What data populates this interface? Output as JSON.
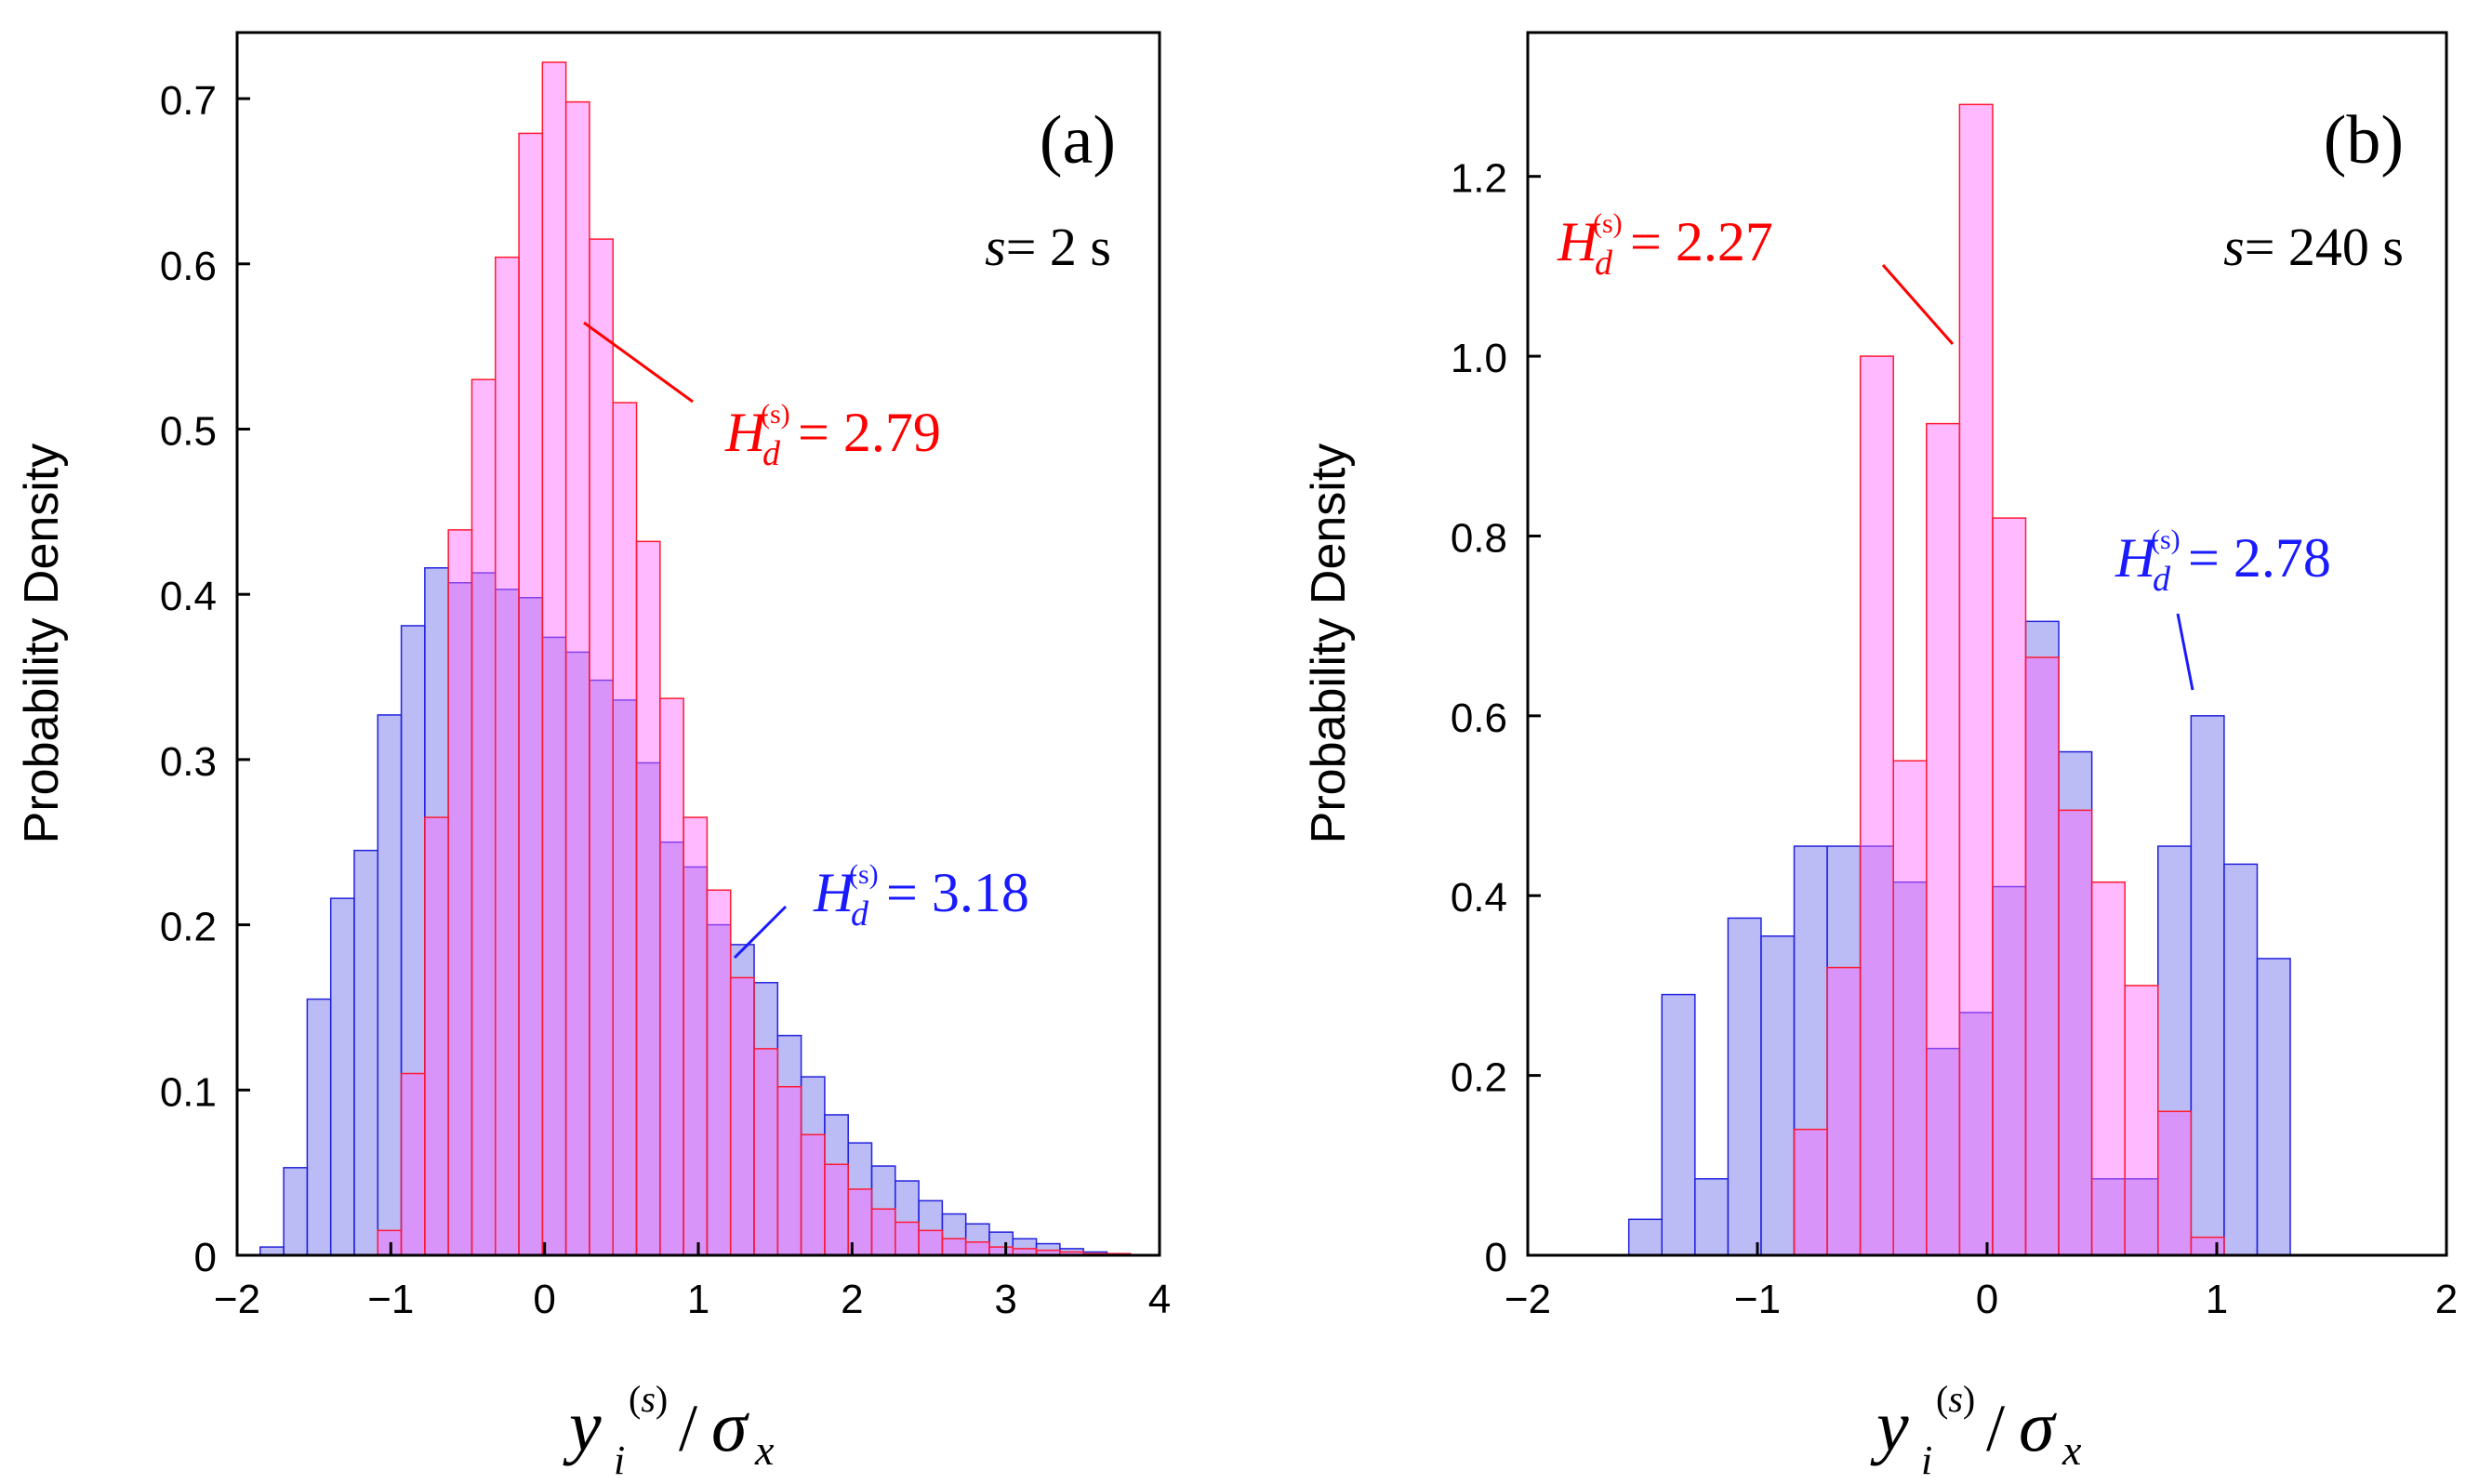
{
  "colors": {
    "pink_fill": "#ff66ff",
    "pink_stroke": "#ff1a33",
    "blue_fill": "#7777ee",
    "blue_stroke": "#2222dd",
    "red_text": "#ff0000",
    "blue_text": "#1a1aff"
  },
  "chart_data": [
    {
      "type": "bar",
      "panel_label": "(a)",
      "s_label": "s",
      "s_value": "= 2 s",
      "xlabel": "y_i^(s)/σ_x",
      "ylabel": "Probability Density",
      "xlim": [
        -2,
        4
      ],
      "ylim": [
        0,
        0.74
      ],
      "xticks": [
        -2,
        -1,
        0,
        1,
        2,
        3,
        4
      ],
      "xtick_labels": [
        "−2",
        "−1",
        "0",
        "1",
        "2",
        "3",
        "4"
      ],
      "yticks": [
        0,
        0.1,
        0.2,
        0.3,
        0.4,
        0.5,
        0.6,
        0.7
      ],
      "ytick_labels": [
        "0",
        "0.1",
        "0.2",
        "0.3",
        "0.4",
        "0.5",
        "0.6",
        "0.7"
      ],
      "bin_start": -1.85,
      "bin_width": 0.153,
      "series": [
        {
          "name": "blue",
          "values": [
            0.005,
            0.053,
            0.155,
            0.216,
            0.245,
            0.327,
            0.381,
            0.416,
            0.407,
            0.413,
            0.403,
            0.398,
            0.374,
            0.365,
            0.348,
            0.336,
            0.298,
            0.25,
            0.235,
            0.2,
            0.188,
            0.165,
            0.133,
            0.108,
            0.085,
            0.068,
            0.054,
            0.045,
            0.033,
            0.025,
            0.019,
            0.014,
            0.01,
            0.007,
            0.004,
            0.002,
            0.001,
            0.0,
            0.0
          ]
        },
        {
          "name": "pink",
          "start_index": 5,
          "values": [
            0.015,
            0.11,
            0.265,
            0.439,
            0.53,
            0.604,
            0.679,
            0.722,
            0.698,
            0.615,
            0.516,
            0.432,
            0.337,
            0.265,
            0.221,
            0.168,
            0.125,
            0.102,
            0.073,
            0.055,
            0.04,
            0.028,
            0.02,
            0.015,
            0.01,
            0.008,
            0.005,
            0.004,
            0.003,
            0.002,
            0.001,
            0.001
          ]
        }
      ],
      "annotations": [
        {
          "name": "pink",
          "symbol": "H",
          "subscript": "d",
          "superscript": "(s)",
          "value": "= 2.79",
          "color": "red"
        },
        {
          "name": "blue",
          "symbol": "H",
          "subscript": "d",
          "superscript": "(s)",
          "value": "= 3.18",
          "color": "blue"
        }
      ]
    },
    {
      "type": "bar",
      "panel_label": "(b)",
      "s_label": "s",
      "s_value": "= 240 s",
      "xlabel": "y_i^(s)/σ_x",
      "ylabel": "Probability Density",
      "xlim": [
        -2,
        2
      ],
      "ylim": [
        0,
        1.36
      ],
      "xticks": [
        -2,
        -1,
        0,
        1,
        2
      ],
      "xtick_labels": [
        "−2",
        "−1",
        "0",
        "1",
        "2"
      ],
      "yticks": [
        0,
        0.2,
        0.4,
        0.6,
        0.8,
        1.0,
        1.2
      ],
      "ytick_labels": [
        "0",
        "0.2",
        "0.4",
        "0.6",
        "0.8",
        "1.0",
        "1.2"
      ],
      "bin_start": -1.56,
      "bin_width": 0.144,
      "series": [
        {
          "name": "blue",
          "values": [
            0.04,
            0.29,
            0.085,
            0.375,
            0.355,
            0.455,
            0.455,
            0.455,
            0.415,
            0.23,
            0.27,
            0.41,
            0.705,
            0.56,
            0.085,
            0.085,
            0.455,
            0.6,
            0.435,
            0.33
          ]
        },
        {
          "name": "pink",
          "start_index": 5,
          "values": [
            0.14,
            0.32,
            1.0,
            0.55,
            0.925,
            1.28,
            0.82,
            0.665,
            0.495,
            0.415,
            0.3,
            0.16,
            0.02
          ]
        }
      ],
      "annotations": [
        {
          "name": "pink",
          "symbol": "H",
          "subscript": "d",
          "superscript": "(s)",
          "value": "= 2.27",
          "color": "red"
        },
        {
          "name": "blue",
          "symbol": "H",
          "subscript": "d",
          "superscript": "(s)",
          "value": "= 2.78",
          "color": "blue"
        }
      ]
    }
  ]
}
